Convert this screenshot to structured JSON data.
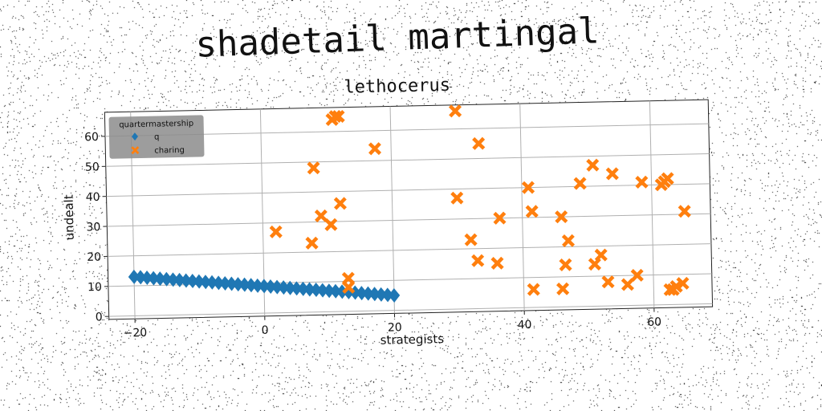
{
  "figure_title": "shadetail martingal",
  "chart_data": {
    "type": "scatter",
    "title": "lethocerus",
    "xlabel": "strategists",
    "ylabel": "undealt",
    "xlim": [
      -24,
      69
    ],
    "ylim": [
      -1,
      68
    ],
    "xticks": [
      -20,
      0,
      20,
      40,
      60
    ],
    "yticks": [
      0,
      10,
      20,
      30,
      40,
      50,
      60
    ],
    "grid": true,
    "legend": {
      "title": "quartermastership",
      "placement": "top-left"
    },
    "series": [
      {
        "name": "q",
        "marker": "diamond",
        "color": "#1f77b4",
        "x": [
          -20,
          -19,
          -18,
          -17,
          -16,
          -15,
          -14,
          -13,
          -12,
          -11,
          -10,
          -9,
          -8,
          -7,
          -6,
          -5,
          -4,
          -3,
          -2,
          -1,
          0,
          1,
          2,
          3,
          4,
          5,
          6,
          7,
          8,
          9,
          10,
          11,
          12,
          13,
          14,
          15,
          16,
          17,
          18,
          19,
          20
        ],
        "y": [
          13.0,
          12.8,
          12.6,
          12.4,
          12.2,
          12.0,
          11.8,
          11.6,
          11.4,
          11.2,
          11.0,
          10.8,
          10.6,
          10.4,
          10.2,
          10.0,
          9.8,
          9.6,
          9.4,
          9.2,
          9.0,
          8.8,
          8.6,
          8.4,
          8.2,
          8.0,
          7.8,
          7.6,
          7.4,
          7.2,
          7.0,
          6.8,
          6.6,
          6.4,
          6.2,
          6.0,
          5.8,
          5.6,
          5.4,
          5.2,
          5.0
        ]
      },
      {
        "name": "charing",
        "marker": "x",
        "color": "#ff7f0e",
        "x": [
          2,
          7.5,
          8,
          9,
          10.5,
          11,
          12,
          12,
          13,
          13,
          17.5,
          11.5,
          30,
          30,
          32,
          33,
          36,
          36.5,
          33.5,
          41,
          41.5,
          41.5,
          46,
          46,
          46.5,
          47,
          49,
          51,
          51,
          52,
          53,
          54,
          56,
          57.5,
          58.5,
          61.5,
          62,
          62.5,
          62.5,
          63,
          63.5,
          64.5,
          65
        ],
        "y": [
          27,
          23,
          48,
          32,
          29,
          64,
          65,
          36,
          8,
          11,
          54,
          65,
          66,
          37,
          23,
          16,
          15,
          30,
          55,
          40,
          32,
          6,
          30,
          6,
          14,
          22,
          41,
          47,
          14,
          17,
          8,
          44,
          7,
          10,
          41,
          40,
          41,
          42,
          5,
          5,
          6,
          7,
          31
        ]
      }
    ]
  }
}
